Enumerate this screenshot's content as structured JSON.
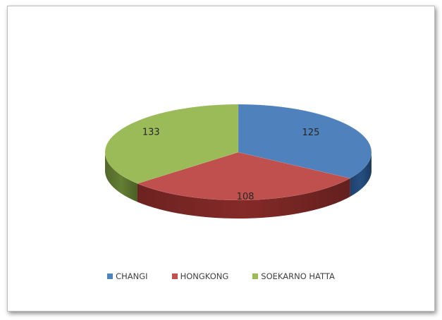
{
  "chart_data": {
    "type": "pie",
    "style": "3d-pie",
    "legend_position": "bottom",
    "labels": [
      "CHANGI",
      "HONGKONG",
      "SOEKARNO HATTA"
    ],
    "values": [
      125,
      108,
      133
    ],
    "data_labels": [
      "125",
      "108",
      "133"
    ],
    "colors": [
      "#4f81bd",
      "#c0504d",
      "#9bbb59"
    ],
    "side_colors": [
      "#254f82",
      "#842a28",
      "#647e33"
    ]
  }
}
